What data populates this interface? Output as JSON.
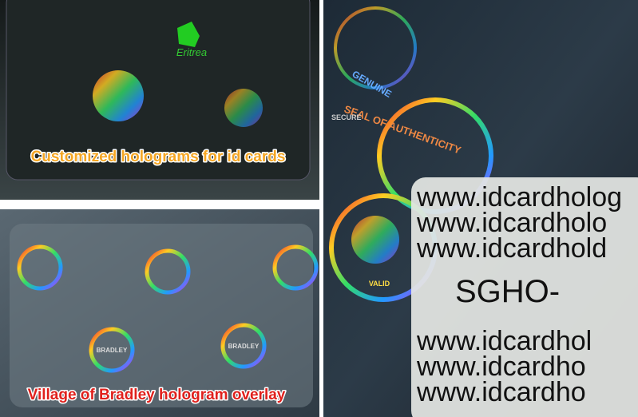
{
  "panels": [
    {
      "caption": "Customized holograms for id cards",
      "texts": [
        "Eritrea"
      ]
    },
    {
      "caption": "Village of Bradley hologram overlay",
      "texts": [
        "BRADLEY",
        "BRADLEY"
      ]
    },
    {
      "texts": [
        "SEAL OF AUTHENTICITY",
        "GENUINE",
        "VALID",
        "SECURE"
      ],
      "card_lines": [
        "www.idcardholog",
        "www.idcardholo",
        "www.idcardhold",
        "SGHO-",
        "www.idcardhol",
        "www.idcardho",
        "www.idcardho"
      ]
    }
  ]
}
